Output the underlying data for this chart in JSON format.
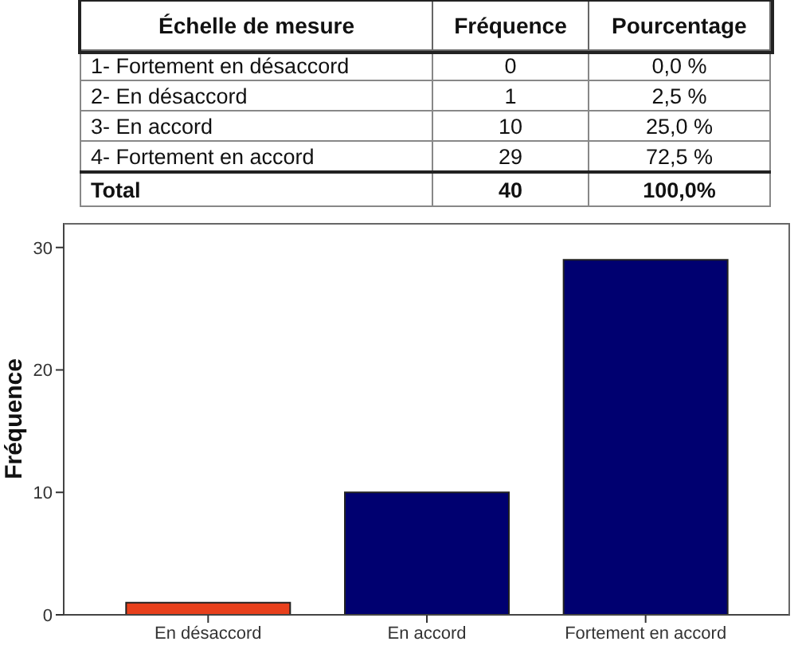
{
  "chart_data": [
    {
      "type": "other",
      "xlabel": "Échelle de mesure",
      "categories": [
        "1- Fortement en désaccord",
        "2- En désaccord",
        "3- En accord",
        "4- Fortement en accord",
        "Total"
      ],
      "data_labels": true,
      "series": [
        {
          "name": "Fréquence",
          "values": [
            0,
            1,
            10,
            29,
            40
          ]
        },
        {
          "name": "Pourcentage",
          "values": [
            0,
            2.5,
            25,
            72.5,
            100
          ],
          "value_labels": [
            "0,0 %",
            "2,5 %",
            "25,0 %",
            "72,5 %",
            "100,0%"
          ]
        }
      ]
    },
    {
      "type": "bar",
      "categories": [
        "En désaccord",
        "En accord",
        "Fortement en accord"
      ],
      "values": [
        1,
        10,
        29
      ],
      "colors": [
        "#e8401c",
        "#000070",
        "#000070"
      ],
      "ylabel": "Fréquence",
      "ylim": [
        0,
        32
      ],
      "yticks": [
        0,
        10,
        20,
        30
      ]
    }
  ]
}
